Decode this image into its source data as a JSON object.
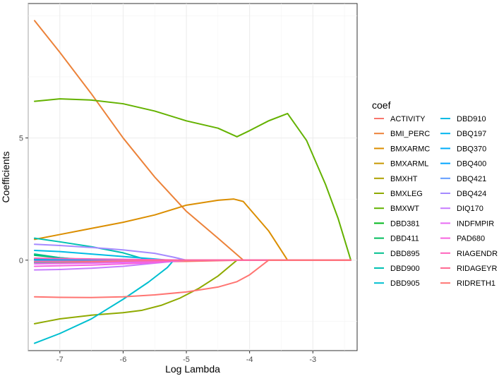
{
  "chart_data": {
    "type": "line",
    "title": "",
    "xlabel": "Log Lambda",
    "ylabel": "Coefficients",
    "xlim": [
      -7.5,
      -2.3
    ],
    "ylim": [
      -3.7,
      10.5
    ],
    "x_ticks": [
      -7,
      -6,
      -5,
      -4,
      -3
    ],
    "y_ticks": [
      0,
      5
    ],
    "grid": true,
    "legend_title": "coef",
    "legend_position": "right",
    "series": [
      {
        "name": "ACTIVITY",
        "color": "#F8766D",
        "x": [
          -7.4,
          -5.0,
          -4.1,
          -2.4
        ],
        "y": [
          -0.1,
          -0.05,
          0,
          0
        ]
      },
      {
        "name": "BMI_PERC",
        "color": "#EC8239",
        "x": [
          -7.4,
          -7.0,
          -6.5,
          -6.0,
          -5.5,
          -5.0,
          -4.5,
          -4.1,
          -2.4
        ],
        "y": [
          9.8,
          8.5,
          6.8,
          5.0,
          3.4,
          2.0,
          0.9,
          0,
          0
        ]
      },
      {
        "name": "BMXARMC",
        "color": "#DB8E00",
        "x": [
          -7.4,
          -7.0,
          -6.5,
          -6.0,
          -5.5,
          -5.0,
          -4.5,
          -4.25,
          -4.1,
          -3.7,
          -3.4,
          -2.4
        ],
        "y": [
          0.85,
          1.05,
          1.3,
          1.55,
          1.85,
          2.25,
          2.45,
          2.5,
          2.4,
          1.2,
          0,
          0
        ]
      },
      {
        "name": "BMXARML",
        "color": "#C79800",
        "x": [
          -7.4,
          -6.5,
          -5.5,
          -5.0,
          -2.4
        ],
        "y": [
          -0.1,
          -0.05,
          -0.02,
          0,
          0
        ]
      },
      {
        "name": "BMXHT",
        "color": "#AEA200",
        "x": [
          -7.4,
          -6.5,
          -5.5,
          -5.0,
          -2.4
        ],
        "y": [
          0.05,
          0.03,
          0.01,
          0,
          0
        ]
      },
      {
        "name": "BMXLEG",
        "color": "#8FAA00",
        "x": [
          -7.4,
          -7.2,
          -7.0,
          -6.5,
          -6.0,
          -5.7,
          -5.4,
          -5.1,
          -4.8,
          -4.5,
          -4.2,
          -2.4
        ],
        "y": [
          -2.6,
          -2.5,
          -2.4,
          -2.25,
          -2.15,
          -2.05,
          -1.85,
          -1.55,
          -1.15,
          -0.65,
          0,
          0
        ]
      },
      {
        "name": "BMXWT",
        "color": "#64B200",
        "x": [
          -7.4,
          -7.0,
          -6.5,
          -6.0,
          -5.5,
          -5.0,
          -4.5,
          -4.2,
          -4.0,
          -3.7,
          -3.4,
          -3.1,
          -2.8,
          -2.6,
          -2.4
        ],
        "y": [
          6.5,
          6.6,
          6.55,
          6.4,
          6.1,
          5.7,
          5.4,
          5.05,
          5.3,
          5.7,
          6.0,
          4.9,
          3.1,
          1.7,
          0
        ]
      },
      {
        "name": "DBD381",
        "color": "#00B81B",
        "x": [
          -7.4,
          -6.5,
          -5.5,
          -2.4
        ],
        "y": [
          0.02,
          0.01,
          0,
          0
        ]
      },
      {
        "name": "DBD411",
        "color": "#00BD5C",
        "x": [
          -7.4,
          -7.0,
          -6.5,
          -2.4
        ],
        "y": [
          0.2,
          0.1,
          0,
          0
        ]
      },
      {
        "name": "DBD895",
        "color": "#00C08E",
        "x": [
          -7.4,
          -7.0,
          -6.6,
          -2.4
        ],
        "y": [
          0.25,
          0.1,
          0,
          0
        ]
      },
      {
        "name": "DBD900",
        "color": "#00C1B2",
        "x": [
          -7.4,
          -7.0,
          -6.5,
          -6.0,
          -5.6,
          -2.4
        ],
        "y": [
          0.9,
          0.75,
          0.55,
          0.3,
          0,
          0
        ]
      },
      {
        "name": "DBD905",
        "color": "#00BFD0",
        "x": [
          -7.4,
          -7.0,
          -6.5,
          -6.0,
          -5.6,
          -5.3,
          -5.2,
          -2.4
        ],
        "y": [
          -3.4,
          -3.0,
          -2.4,
          -1.6,
          -0.9,
          -0.3,
          0,
          0
        ]
      },
      {
        "name": "DBD910",
        "color": "#00BBE4",
        "x": [
          -7.4,
          -7.0,
          -6.5,
          -6.0,
          -5.5,
          -5.3,
          -2.4
        ],
        "y": [
          0.4,
          0.35,
          0.25,
          0.15,
          0.05,
          0,
          0
        ]
      },
      {
        "name": "DBQ197",
        "color": "#00B5EE",
        "x": [
          -7.4,
          -6.5,
          -2.4
        ],
        "y": [
          0.02,
          0.01,
          0
        ]
      },
      {
        "name": "DBQ370",
        "color": "#00ADFA",
        "x": [
          -7.4,
          -6.5,
          -5.5,
          -2.4
        ],
        "y": [
          -0.05,
          -0.02,
          0,
          0
        ]
      },
      {
        "name": "DBQ400",
        "color": "#00A5FF",
        "x": [
          -7.4,
          -6.5,
          -2.4
        ],
        "y": [
          0.01,
          0,
          0
        ]
      },
      {
        "name": "DBQ421",
        "color": "#619CFF",
        "x": [
          -7.4,
          -6.5,
          -5.5,
          -2.4
        ],
        "y": [
          -0.08,
          -0.04,
          0,
          0
        ]
      },
      {
        "name": "DBQ424",
        "color": "#A58AFF",
        "x": [
          -7.4,
          -7.0,
          -6.5,
          -6.0,
          -5.5,
          -5.2,
          -5.0,
          -2.4
        ],
        "y": [
          0.65,
          0.6,
          0.52,
          0.42,
          0.28,
          0.12,
          0,
          0
        ]
      },
      {
        "name": "DIQ170",
        "color": "#C77CFF",
        "x": [
          -7.4,
          -7.0,
          -6.5,
          -6.0,
          -5.5,
          -5.0,
          -2.4
        ],
        "y": [
          -0.4,
          -0.38,
          -0.33,
          -0.25,
          -0.12,
          0,
          0
        ]
      },
      {
        "name": "INDFMPIR",
        "color": "#E76BF3",
        "x": [
          -7.4,
          -6.5,
          -5.5,
          -5.0,
          -2.4
        ],
        "y": [
          -0.15,
          -0.12,
          -0.06,
          0,
          0
        ]
      },
      {
        "name": "PAD680",
        "color": "#F763E0",
        "x": [
          -7.4,
          -6.5,
          -5.5,
          -5.0,
          -2.4
        ],
        "y": [
          -0.25,
          -0.2,
          -0.1,
          0,
          0
        ]
      },
      {
        "name": "RIAGENDR",
        "color": "#FF62BC",
        "x": [
          -7.4,
          -6.5,
          -5.5,
          -5.0,
          -2.4
        ],
        "y": [
          0.08,
          0.05,
          0.02,
          0,
          0
        ]
      },
      {
        "name": "RIDAGEYR",
        "color": "#FF6B94",
        "x": [
          -7.4,
          -6.5,
          -5.5,
          -5.0,
          -2.4
        ],
        "y": [
          -0.05,
          -0.04,
          -0.02,
          0,
          0
        ]
      },
      {
        "name": "RIDRETH1",
        "color": "#FF7572",
        "x": [
          -7.4,
          -7.0,
          -6.5,
          -6.0,
          -5.5,
          -5.0,
          -4.5,
          -4.2,
          -4.0,
          -3.7,
          -2.4
        ],
        "y": [
          -1.5,
          -1.52,
          -1.53,
          -1.5,
          -1.42,
          -1.3,
          -1.1,
          -0.88,
          -0.6,
          0,
          0
        ]
      }
    ]
  }
}
